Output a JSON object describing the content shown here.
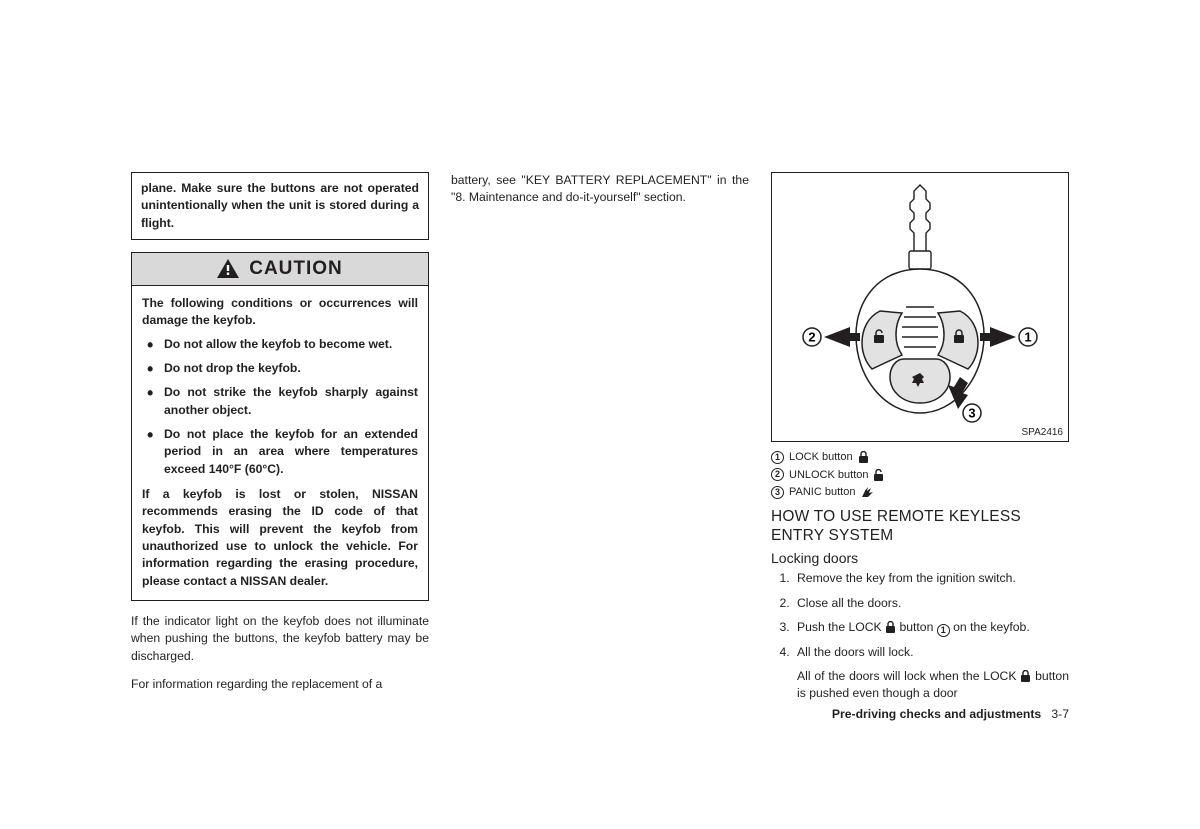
{
  "col1": {
    "warning_box": "plane. Make sure the buttons are not operated unintentionally when the unit is stored during a flight.",
    "caution_label": "CAUTION",
    "caution_intro": "The following conditions or occurrences will damage the keyfob.",
    "caution_items": [
      "Do not allow the keyfob to become wet.",
      "Do not drop the keyfob.",
      "Do not strike the keyfob sharply against another object.",
      "Do not place the keyfob for an extended period in an area where temperatures exceed 140°F (60°C)."
    ],
    "caution_after": "If a keyfob is lost or stolen, NISSAN recommends erasing the ID code of that keyfob. This will prevent the keyfob from unauthorized use to unlock the vehicle. For information regarding the erasing procedure, please contact a NISSAN dealer.",
    "para1": "If the indicator light on the keyfob does not illuminate when pushing the buttons, the keyfob battery may be discharged.",
    "para2": "For information regarding the replacement of a"
  },
  "col2": {
    "para1": "battery, see \"KEY BATTERY REPLACEMENT\" in the \"8. Maintenance and do-it-yourself\" section."
  },
  "col3": {
    "fig_label": "SPA2416",
    "legend": [
      {
        "num": "1",
        "text": "LOCK button",
        "icon": "lock"
      },
      {
        "num": "2",
        "text": "UNLOCK button",
        "icon": "unlock"
      },
      {
        "num": "3",
        "text": "PANIC button",
        "icon": "panic"
      }
    ],
    "h1": "HOW TO USE REMOTE KEYLESS ENTRY SYSTEM",
    "h2": "Locking doors",
    "steps": [
      "Remove the key from the ignition switch.",
      "Close all the doors.",
      "Push the LOCK {lock} button {c1} on the keyfob.",
      "All the doors will lock."
    ],
    "after_steps": "All of the doors will lock when the LOCK {lock} button is pushed even though a door",
    "footer_section": "Pre-driving checks and adjustments",
    "footer_page": "3-7"
  },
  "colors": {
    "text": "#231f20",
    "caution_bg": "#d9d9d9",
    "white": "#ffffff"
  }
}
